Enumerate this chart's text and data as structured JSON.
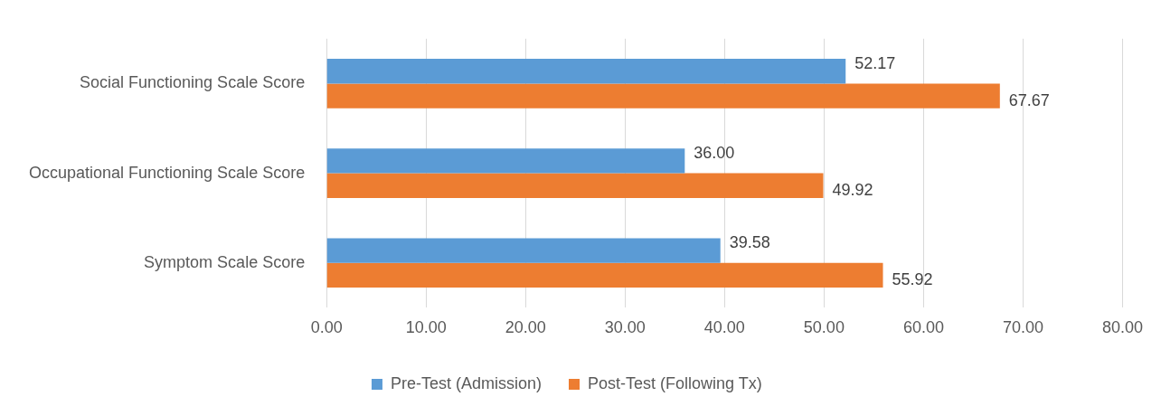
{
  "chart_data": {
    "type": "bar",
    "orientation": "horizontal",
    "categories": [
      "Social Functioning Scale Score",
      "Occupational Functioning Scale Score",
      "Symptom Scale Score"
    ],
    "series": [
      {
        "name": "Pre-Test (Admission)",
        "color": "#5b9bd5",
        "values": [
          52.17,
          36.0,
          39.58
        ],
        "value_labels": [
          "52.17",
          "36.00",
          "39.58"
        ]
      },
      {
        "name": "Post-Test (Following Tx)",
        "color": "#ed7d31",
        "values": [
          67.67,
          49.92,
          55.92
        ],
        "value_labels": [
          "67.67",
          "49.92",
          "55.92"
        ]
      }
    ],
    "xlim": [
      0,
      80
    ],
    "xticks": [
      {
        "value": 0,
        "label": "0.00"
      },
      {
        "value": 10,
        "label": "10.00"
      },
      {
        "value": 20,
        "label": "20.00"
      },
      {
        "value": 30,
        "label": "30.00"
      },
      {
        "value": 40,
        "label": "40.00"
      },
      {
        "value": 50,
        "label": "50.00"
      },
      {
        "value": 60,
        "label": "60.00"
      },
      {
        "value": 70,
        "label": "70.00"
      },
      {
        "value": 80,
        "label": "80.00"
      }
    ],
    "grid": "x",
    "legend": "bottom"
  }
}
